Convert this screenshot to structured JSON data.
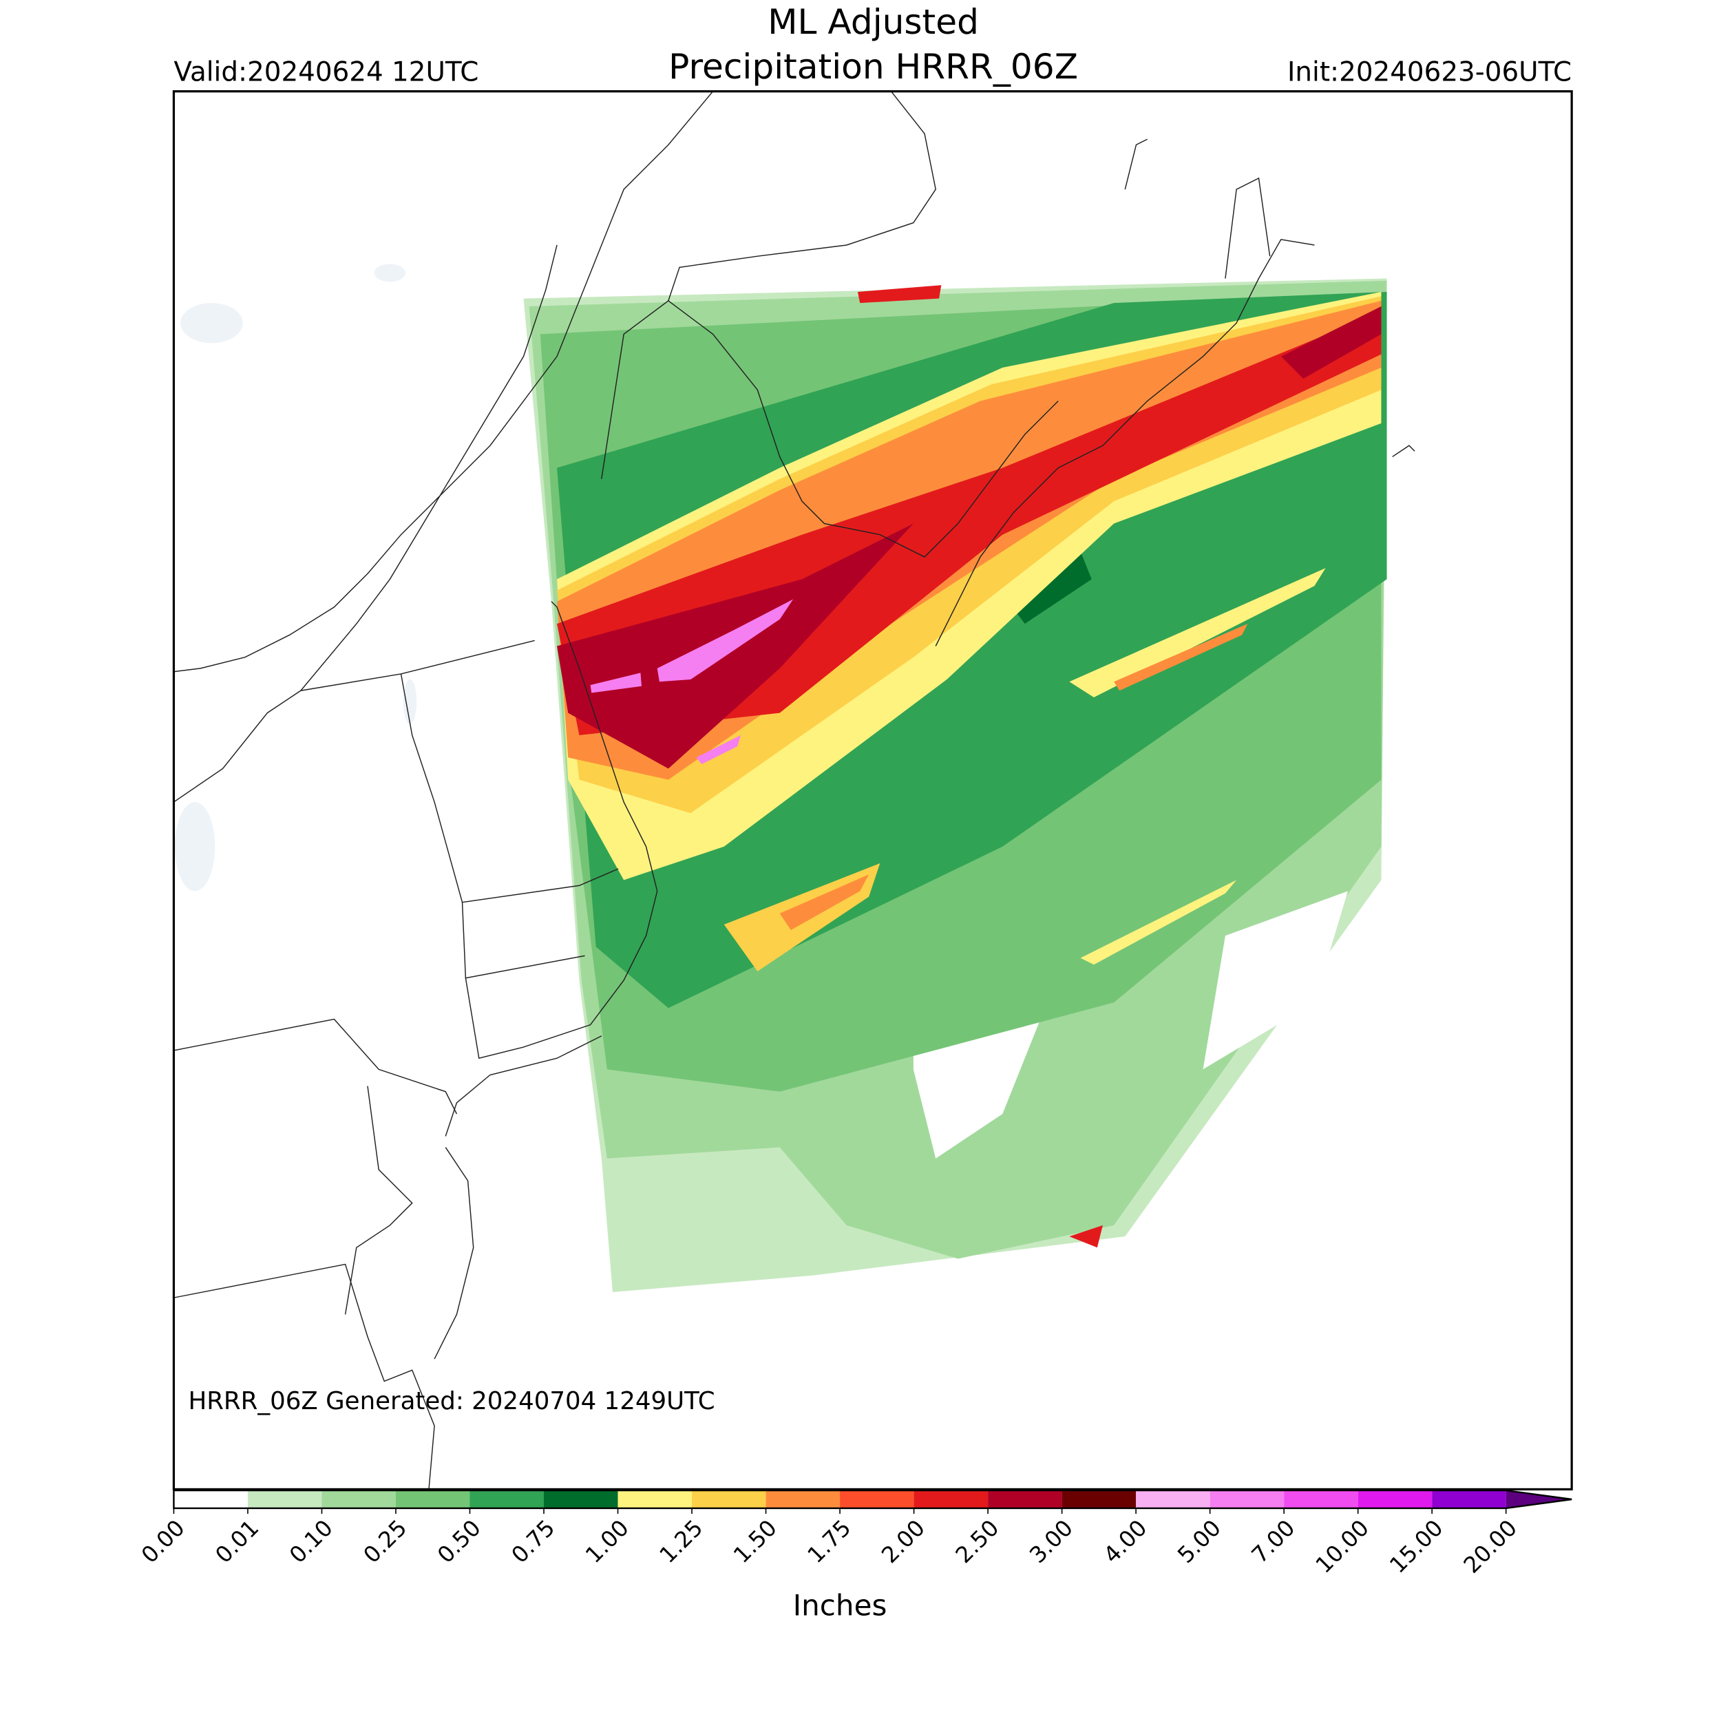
{
  "header": {
    "title_line1": "ML Adjusted",
    "title_line2": "Precipitation HRRR_06Z",
    "valid": "Valid:20240624 12UTC",
    "init": "Init:20240623-06UTC"
  },
  "map": {
    "footer": "HRRR_06Z Generated: 20240704 1249UTC"
  },
  "colorbar": {
    "label": "Inches",
    "ticks": [
      {
        "value": 0,
        "label": "0.00"
      },
      {
        "value": 0.01,
        "label": "0.01"
      },
      {
        "value": 0.1,
        "label": "0.10"
      },
      {
        "value": 0.25,
        "label": "0.25"
      },
      {
        "value": 0.5,
        "label": "0.50"
      },
      {
        "value": 0.75,
        "label": "0.75"
      },
      {
        "value": 1,
        "label": "1.00"
      },
      {
        "value": 1.25,
        "label": "1.25"
      },
      {
        "value": 1.5,
        "label": "1.50"
      },
      {
        "value": 1.75,
        "label": "1.75"
      },
      {
        "value": 2,
        "label": "2.00"
      },
      {
        "value": 2.5,
        "label": "2.50"
      },
      {
        "value": 3,
        "label": "3.00"
      },
      {
        "value": 4,
        "label": "4.00"
      },
      {
        "value": 5,
        "label": "5.00"
      },
      {
        "value": 7,
        "label": "7.00"
      },
      {
        "value": 10,
        "label": "10.00"
      },
      {
        "value": 15,
        "label": "15.00"
      },
      {
        "value": 20,
        "label": "20.00"
      }
    ],
    "colors": [
      "#ffffff",
      "#c7e9c0",
      "#a1d99b",
      "#74c476",
      "#31a354",
      "#006d2c",
      "#fff380",
      "#fdd049",
      "#fd8d3c",
      "#fc4e2a",
      "#e31a1c",
      "#b10026",
      "#6b0000",
      "#f8b0f2",
      "#f57ef0",
      "#f04cf0",
      "#e01aee",
      "#9000d0"
    ],
    "extend_color": "#5c0080"
  }
}
